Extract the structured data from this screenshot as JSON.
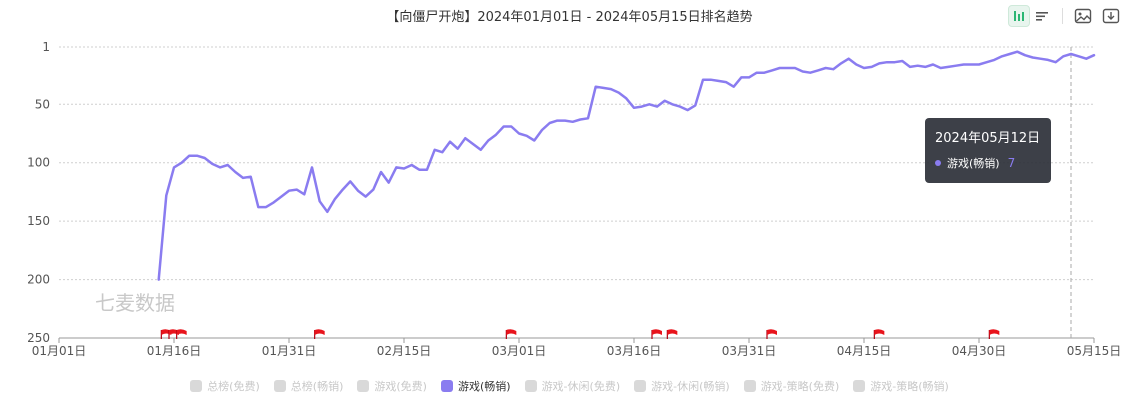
{
  "title": "【向僵尸开炮】2024年01月01日 - 2024年05月15日排名趋势",
  "toolbar": {
    "icons": [
      "bar-chart-icon",
      "list-icon",
      "image-icon",
      "download-icon"
    ],
    "accent": "#2bb673"
  },
  "watermark": "七麦数据",
  "tooltip": {
    "date": "2024年05月12日",
    "series": "游戏(畅销)",
    "value": "7"
  },
  "legend": [
    {
      "label": "总榜(免费)",
      "active": false
    },
    {
      "label": "总榜(畅销)",
      "active": false
    },
    {
      "label": "游戏(免费)",
      "active": false
    },
    {
      "label": "游戏(畅销)",
      "active": true
    },
    {
      "label": "游戏-休闲(免费)",
      "active": false
    },
    {
      "label": "游戏-休闲(畅销)",
      "active": false
    },
    {
      "label": "游戏-策略(免费)",
      "active": false
    },
    {
      "label": "游戏-策略(畅销)",
      "active": false
    }
  ],
  "chart_data": {
    "type": "line",
    "y_inverted": true,
    "ylim": [
      1,
      250
    ],
    "yticks": [
      1,
      50,
      100,
      150,
      200,
      250
    ],
    "xlim": [
      "2024-01-01",
      "2024-05-15"
    ],
    "xticks": [
      "01月01日",
      "01月16日",
      "01月31日",
      "02月15日",
      "03月01日",
      "03月16日",
      "03月31日",
      "04月15日",
      "04月30日",
      "05月15日"
    ],
    "grid": true,
    "line_color": "#8a7cf0",
    "flag_color": "#e8141c",
    "series": [
      {
        "name": "游戏(畅销)",
        "points": [
          [
            "2024-01-14",
            200
          ],
          [
            "2024-01-15",
            128
          ],
          [
            "2024-01-16",
            104
          ],
          [
            "2024-01-17",
            100
          ],
          [
            "2024-01-18",
            94
          ],
          [
            "2024-01-19",
            94
          ],
          [
            "2024-01-20",
            96
          ],
          [
            "2024-01-21",
            101
          ],
          [
            "2024-01-22",
            104
          ],
          [
            "2024-01-23",
            102
          ],
          [
            "2024-01-24",
            108
          ],
          [
            "2024-01-25",
            113
          ],
          [
            "2024-01-26",
            112
          ],
          [
            "2024-01-27",
            138
          ],
          [
            "2024-01-28",
            138
          ],
          [
            "2024-01-29",
            134
          ],
          [
            "2024-01-30",
            129
          ],
          [
            "2024-01-31",
            124
          ],
          [
            "2024-02-01",
            123
          ],
          [
            "2024-02-02",
            127
          ],
          [
            "2024-02-03",
            104
          ],
          [
            "2024-02-04",
            133
          ],
          [
            "2024-02-05",
            142
          ],
          [
            "2024-02-06",
            131
          ],
          [
            "2024-02-07",
            123
          ],
          [
            "2024-02-08",
            116
          ],
          [
            "2024-02-09",
            124
          ],
          [
            "2024-02-10",
            129
          ],
          [
            "2024-02-11",
            123
          ],
          [
            "2024-02-12",
            108
          ],
          [
            "2024-02-13",
            117
          ],
          [
            "2024-02-14",
            104
          ],
          [
            "2024-02-15",
            105
          ],
          [
            "2024-02-16",
            102
          ],
          [
            "2024-02-17",
            106
          ],
          [
            "2024-02-18",
            106
          ],
          [
            "2024-02-19",
            89
          ],
          [
            "2024-02-20",
            91
          ],
          [
            "2024-02-21",
            82
          ],
          [
            "2024-02-22",
            88
          ],
          [
            "2024-02-23",
            79
          ],
          [
            "2024-02-24",
            84
          ],
          [
            "2024-02-25",
            89
          ],
          [
            "2024-02-26",
            81
          ],
          [
            "2024-02-27",
            76
          ],
          [
            "2024-02-28",
            69
          ],
          [
            "2024-02-29",
            69
          ],
          [
            "2024-03-01",
            75
          ],
          [
            "2024-03-02",
            77
          ],
          [
            "2024-03-03",
            81
          ],
          [
            "2024-03-04",
            72
          ],
          [
            "2024-03-05",
            66
          ],
          [
            "2024-03-06",
            64
          ],
          [
            "2024-03-07",
            64
          ],
          [
            "2024-03-08",
            65
          ],
          [
            "2024-03-09",
            63
          ],
          [
            "2024-03-10",
            62
          ],
          [
            "2024-03-11",
            35
          ],
          [
            "2024-03-12",
            36
          ],
          [
            "2024-03-13",
            37
          ],
          [
            "2024-03-14",
            40
          ],
          [
            "2024-03-15",
            45
          ],
          [
            "2024-03-16",
            53
          ],
          [
            "2024-03-17",
            52
          ],
          [
            "2024-03-18",
            50
          ],
          [
            "2024-03-19",
            52
          ],
          [
            "2024-03-20",
            47
          ],
          [
            "2024-03-21",
            50
          ],
          [
            "2024-03-22",
            52
          ],
          [
            "2024-03-23",
            55
          ],
          [
            "2024-03-24",
            51
          ],
          [
            "2024-03-25",
            29
          ],
          [
            "2024-03-26",
            29
          ],
          [
            "2024-03-27",
            30
          ],
          [
            "2024-03-28",
            31
          ],
          [
            "2024-03-29",
            35
          ],
          [
            "2024-03-30",
            27
          ],
          [
            "2024-03-31",
            27
          ],
          [
            "2024-04-01",
            23
          ],
          [
            "2024-04-02",
            23
          ],
          [
            "2024-04-03",
            21
          ],
          [
            "2024-04-04",
            19
          ],
          [
            "2024-04-05",
            19
          ],
          [
            "2024-04-06",
            19
          ],
          [
            "2024-04-07",
            22
          ],
          [
            "2024-04-08",
            23
          ],
          [
            "2024-04-09",
            21
          ],
          [
            "2024-04-10",
            19
          ],
          [
            "2024-04-11",
            20
          ],
          [
            "2024-04-12",
            15
          ],
          [
            "2024-04-13",
            11
          ],
          [
            "2024-04-14",
            16
          ],
          [
            "2024-04-15",
            19
          ],
          [
            "2024-04-16",
            18
          ],
          [
            "2024-04-17",
            15
          ],
          [
            "2024-04-18",
            14
          ],
          [
            "2024-04-19",
            14
          ],
          [
            "2024-04-20",
            13
          ],
          [
            "2024-04-21",
            18
          ],
          [
            "2024-04-22",
            17
          ],
          [
            "2024-04-23",
            18
          ],
          [
            "2024-04-24",
            16
          ],
          [
            "2024-04-25",
            19
          ],
          [
            "2024-04-26",
            18
          ],
          [
            "2024-04-27",
            17
          ],
          [
            "2024-04-28",
            16
          ],
          [
            "2024-04-29",
            16
          ],
          [
            "2024-04-30",
            16
          ],
          [
            "2024-05-01",
            14
          ],
          [
            "2024-05-02",
            12
          ],
          [
            "2024-05-03",
            9
          ],
          [
            "2024-05-04",
            7
          ],
          [
            "2024-05-05",
            5
          ],
          [
            "2024-05-06",
            8
          ],
          [
            "2024-05-07",
            10
          ],
          [
            "2024-05-08",
            11
          ],
          [
            "2024-05-09",
            12
          ],
          [
            "2024-05-10",
            14
          ],
          [
            "2024-05-11",
            9
          ],
          [
            "2024-05-12",
            7
          ],
          [
            "2024-05-13",
            9
          ],
          [
            "2024-05-14",
            11
          ],
          [
            "2024-05-15",
            8
          ]
        ]
      }
    ],
    "flags": [
      "2024-01-15",
      "2024-01-16",
      "2024-01-17",
      "2024-02-04",
      "2024-02-29",
      "2024-03-19",
      "2024-03-21",
      "2024-04-03",
      "2024-04-17",
      "2024-05-02"
    ]
  }
}
